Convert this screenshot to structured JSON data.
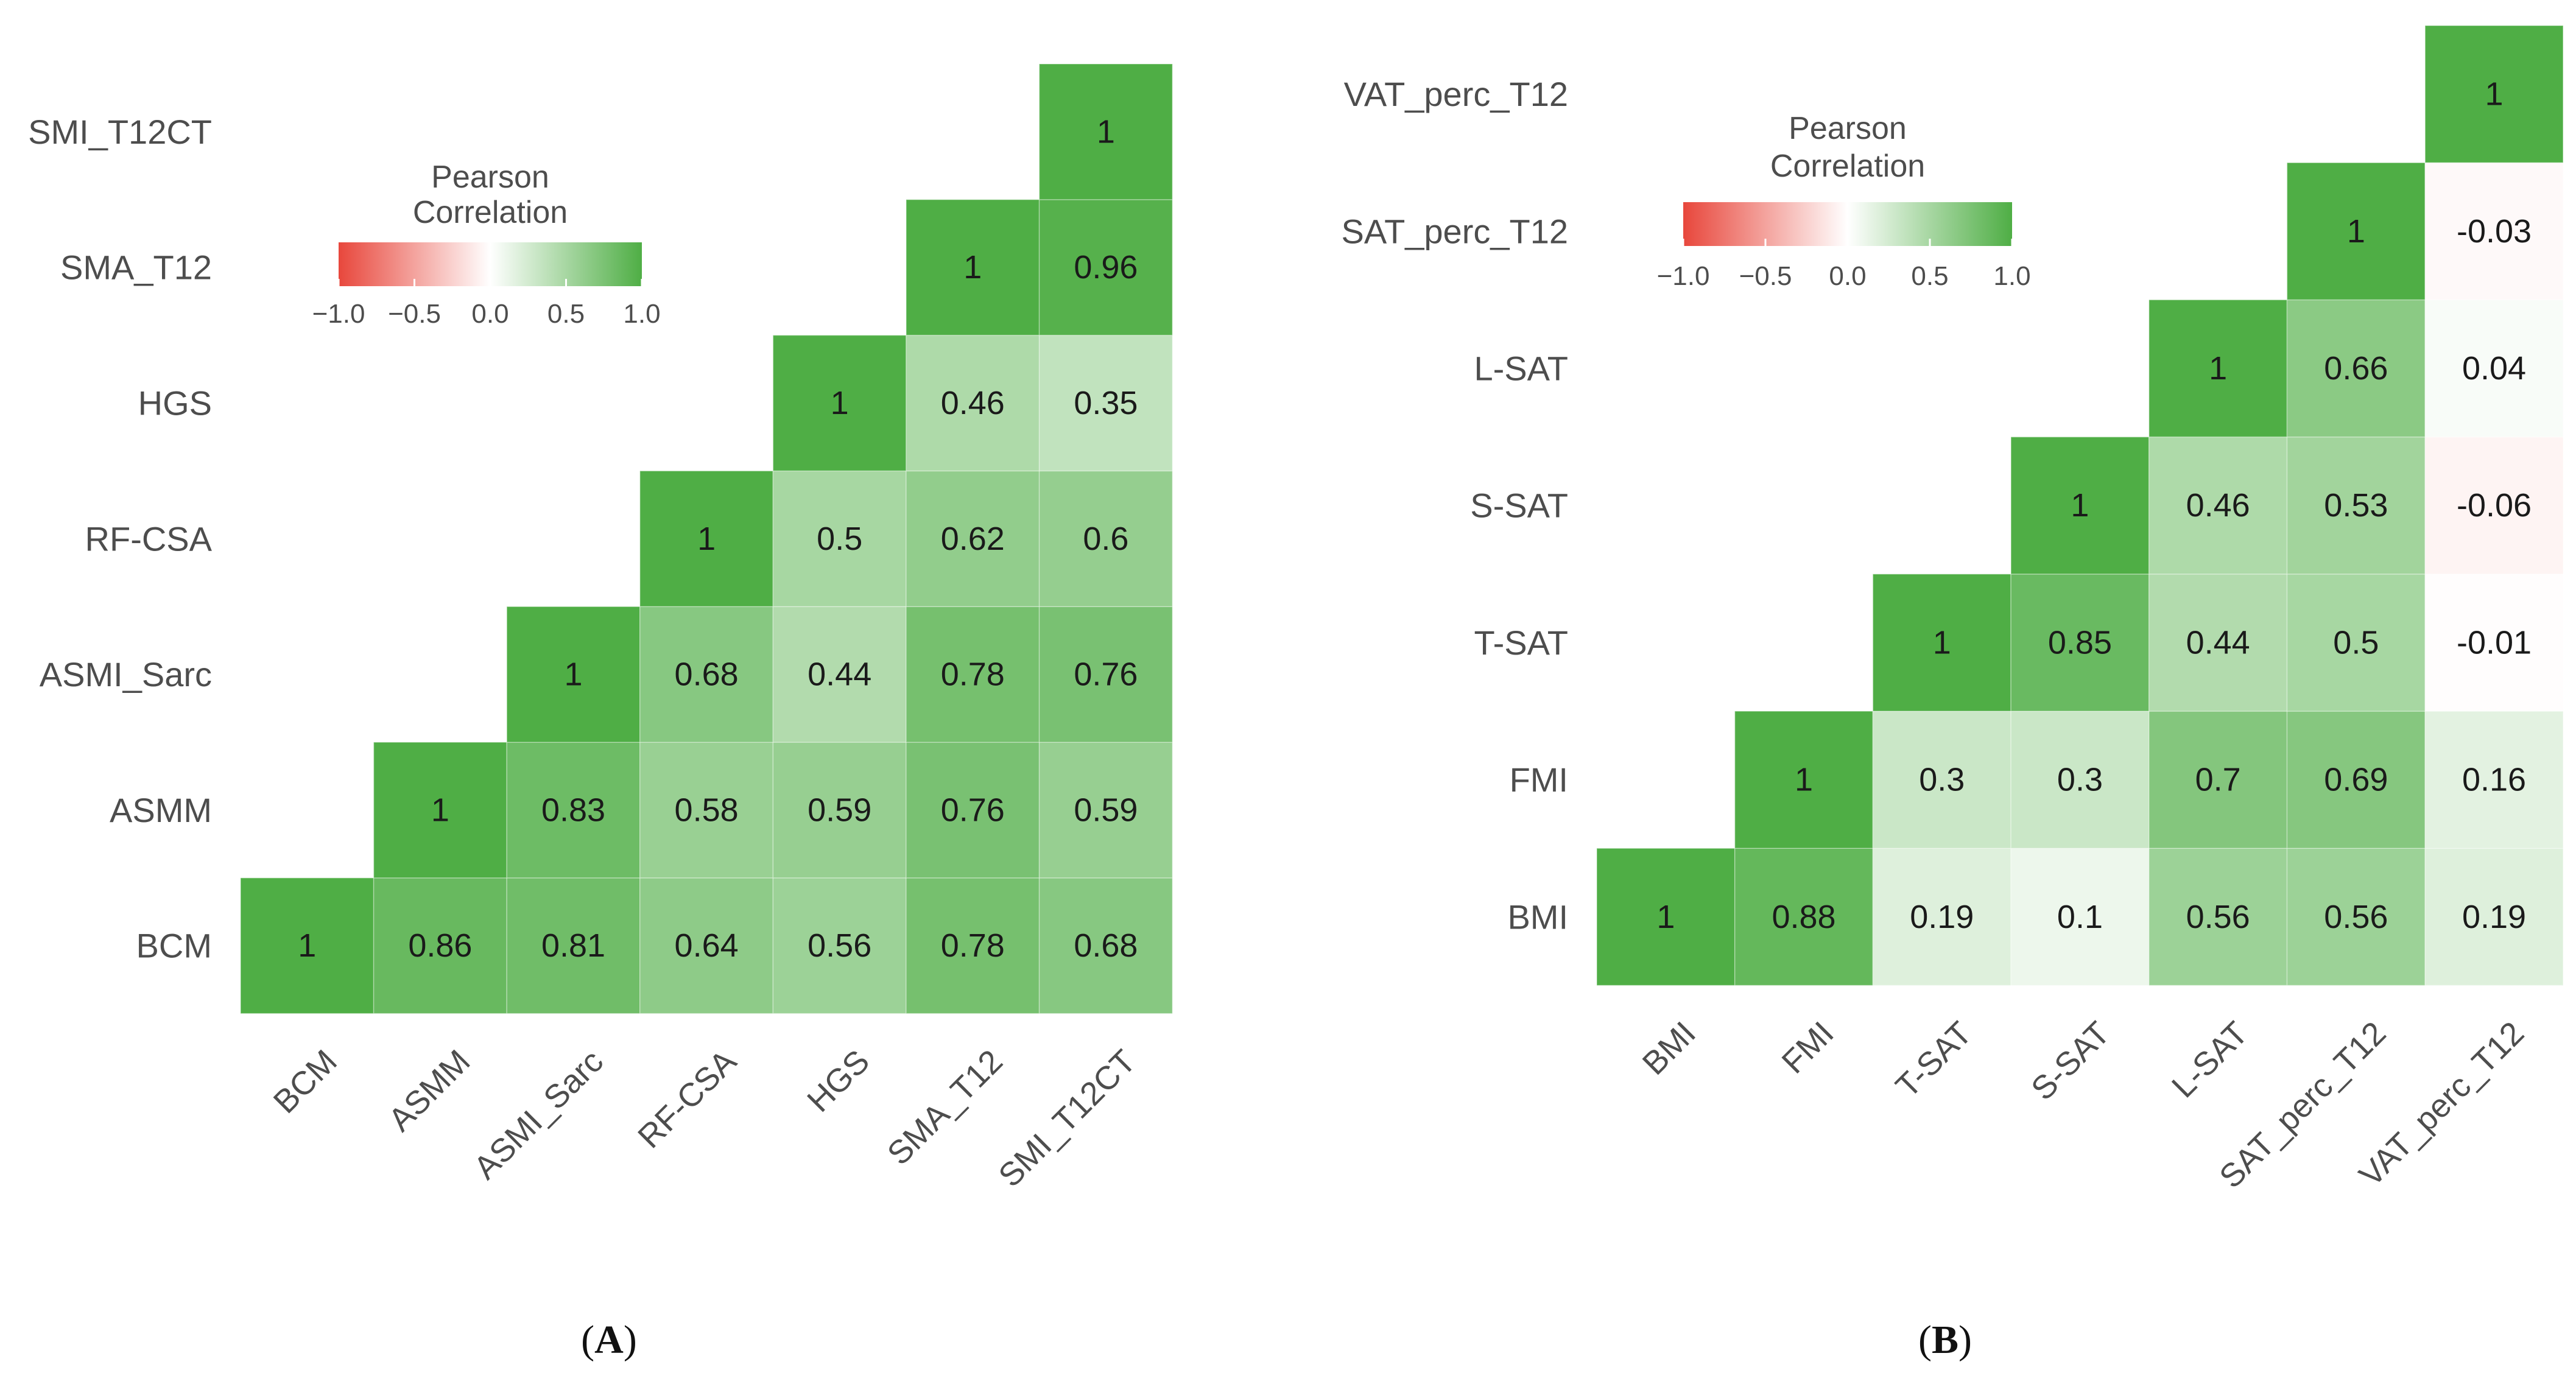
{
  "colors": {
    "negative": "#e8473c",
    "zero": "#ffffff",
    "positive": "#4fae45",
    "label": "#4d4d4d",
    "value": "#1a1a1a"
  },
  "chart_data": [
    {
      "type": "heatmap",
      "panel_label": "(A)",
      "legend_title": [
        "Pearson",
        "Correlation"
      ],
      "legend_ticks": [
        "−1.0",
        "−0.5",
        "0.0",
        "0.5",
        "1.0"
      ],
      "legend_range": [
        -1,
        1
      ],
      "legend_placement": "upper-left inside plot",
      "variables": [
        "BCM",
        "ASMM",
        "ASMI_Sarc",
        "RF-CSA",
        "HGS",
        "SMA_T12",
        "SMI_T12CT"
      ],
      "matrix": [
        [
          1,
          0.86,
          0.81,
          0.64,
          0.56,
          0.78,
          0.68
        ],
        [
          null,
          1,
          0.83,
          0.58,
          0.59,
          0.76,
          0.59
        ],
        [
          null,
          null,
          1,
          0.68,
          0.44,
          0.78,
          0.76
        ],
        [
          null,
          null,
          null,
          1,
          0.5,
          0.62,
          0.6
        ],
        [
          null,
          null,
          null,
          null,
          1,
          0.46,
          0.35
        ],
        [
          null,
          null,
          null,
          null,
          null,
          1,
          0.96
        ],
        [
          null,
          null,
          null,
          null,
          null,
          null,
          1
        ]
      ]
    },
    {
      "type": "heatmap",
      "panel_label": "(B)",
      "legend_title": [
        "Pearson",
        "Correlation"
      ],
      "legend_ticks": [
        "−1.0",
        "−0.5",
        "0.0",
        "0.5",
        "1.0"
      ],
      "legend_range": [
        -1,
        1
      ],
      "legend_placement": "upper-left inside plot",
      "variables": [
        "BMI",
        "FMI",
        "T-SAT",
        "S-SAT",
        "L-SAT",
        "SAT_perc_T12",
        "VAT_perc_T12"
      ],
      "matrix": [
        [
          1,
          0.88,
          0.19,
          0.1,
          0.56,
          0.56,
          0.19
        ],
        [
          null,
          1,
          0.3,
          0.3,
          0.7,
          0.69,
          0.16
        ],
        [
          null,
          null,
          1,
          0.85,
          0.44,
          0.5,
          -0.01
        ],
        [
          null,
          null,
          null,
          1,
          0.46,
          0.53,
          -0.06
        ],
        [
          null,
          null,
          null,
          null,
          1,
          0.66,
          0.04
        ],
        [
          null,
          null,
          null,
          null,
          null,
          1,
          -0.03
        ],
        [
          null,
          null,
          null,
          null,
          null,
          null,
          1
        ]
      ]
    }
  ]
}
